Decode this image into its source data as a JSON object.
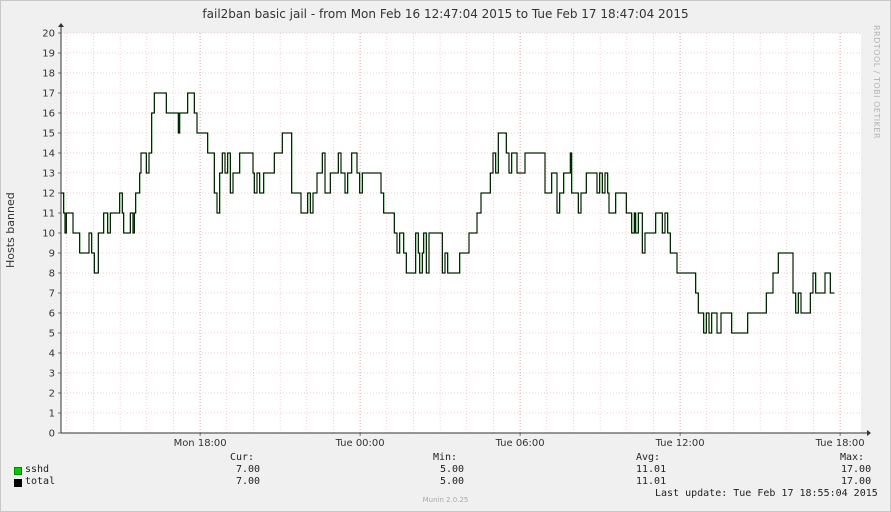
{
  "chart_data": {
    "type": "line",
    "title": "fail2ban basic jail - from Mon Feb 16 12:47:04 2015 to Tue Feb 17 18:47:04 2015",
    "ylabel": "Hosts banned",
    "xlabel": "",
    "ylim": [
      0,
      20
    ],
    "yticks": [
      "0",
      "1",
      "2",
      "3",
      "4",
      "5",
      "6",
      "7",
      "8",
      "9",
      "10",
      "11",
      "12",
      "13",
      "14",
      "15",
      "16",
      "17",
      "18",
      "19",
      "20"
    ],
    "xticks": [
      {
        "label": "Mon 18:00",
        "hour": 5.2167
      },
      {
        "label": "Tue 00:00",
        "hour": 11.2167
      },
      {
        "label": "Tue 06:00",
        "hour": 17.2167
      },
      {
        "label": "Tue 12:00",
        "hour": 23.2167
      },
      {
        "label": "Tue 18:00",
        "hour": 29.2167
      }
    ],
    "x_range_hours": [
      0,
      30
    ],
    "grid": true,
    "series": [
      {
        "name": "sshd",
        "color": "#00cc00",
        "points": [
          [
            0,
            12
          ],
          [
            0.1,
            11
          ],
          [
            0.15,
            10
          ],
          [
            0.2,
            11
          ],
          [
            0.35,
            11
          ],
          [
            0.45,
            10
          ],
          [
            0.6,
            10
          ],
          [
            0.7,
            9
          ],
          [
            1.0,
            9
          ],
          [
            1.05,
            10
          ],
          [
            1.15,
            9
          ],
          [
            1.25,
            8
          ],
          [
            1.3,
            8
          ],
          [
            1.4,
            10
          ],
          [
            1.5,
            10
          ],
          [
            1.6,
            11
          ],
          [
            1.75,
            10
          ],
          [
            1.85,
            11
          ],
          [
            2.1,
            11
          ],
          [
            2.2,
            12
          ],
          [
            2.3,
            11
          ],
          [
            2.35,
            10
          ],
          [
            2.55,
            10
          ],
          [
            2.6,
            11
          ],
          [
            2.7,
            10
          ],
          [
            2.75,
            11
          ],
          [
            2.8,
            12
          ],
          [
            2.95,
            13
          ],
          [
            3.0,
            14
          ],
          [
            3.15,
            14
          ],
          [
            3.2,
            13
          ],
          [
            3.3,
            14
          ],
          [
            3.4,
            16
          ],
          [
            3.5,
            17
          ],
          [
            3.9,
            17
          ],
          [
            3.95,
            16
          ],
          [
            4.3,
            16
          ],
          [
            4.4,
            15
          ],
          [
            4.45,
            16
          ],
          [
            4.7,
            16
          ],
          [
            4.75,
            17
          ],
          [
            4.95,
            17
          ],
          [
            5.0,
            16
          ],
          [
            5.1,
            15
          ],
          [
            5.4,
            15
          ],
          [
            5.5,
            14
          ],
          [
            5.7,
            14
          ],
          [
            5.75,
            12
          ],
          [
            5.85,
            11
          ],
          [
            5.95,
            13
          ],
          [
            6.05,
            14
          ],
          [
            6.15,
            13
          ],
          [
            6.25,
            14
          ],
          [
            6.35,
            12
          ],
          [
            6.45,
            13
          ],
          [
            6.65,
            13
          ],
          [
            6.7,
            14
          ],
          [
            7.15,
            14
          ],
          [
            7.2,
            13
          ],
          [
            7.25,
            12
          ],
          [
            7.35,
            13
          ],
          [
            7.45,
            12
          ],
          [
            7.6,
            13
          ],
          [
            7.95,
            13
          ],
          [
            8.0,
            14
          ],
          [
            8.25,
            14
          ],
          [
            8.3,
            15
          ],
          [
            8.6,
            15
          ],
          [
            8.65,
            12
          ],
          [
            8.9,
            12
          ],
          [
            9.0,
            11
          ],
          [
            9.2,
            11
          ],
          [
            9.25,
            12
          ],
          [
            9.35,
            11
          ],
          [
            9.45,
            12
          ],
          [
            9.6,
            13
          ],
          [
            9.75,
            13
          ],
          [
            9.8,
            14
          ],
          [
            9.9,
            12
          ],
          [
            10.1,
            13
          ],
          [
            10.35,
            13
          ],
          [
            10.4,
            14
          ],
          [
            10.5,
            13
          ],
          [
            10.65,
            12
          ],
          [
            10.75,
            13
          ],
          [
            10.9,
            14
          ],
          [
            11.05,
            14
          ],
          [
            11.1,
            13
          ],
          [
            11.2,
            12
          ],
          [
            11.3,
            13
          ],
          [
            11.95,
            13
          ],
          [
            12.0,
            12
          ],
          [
            12.1,
            11
          ],
          [
            12.4,
            11
          ],
          [
            12.5,
            10
          ],
          [
            12.6,
            9
          ],
          [
            12.7,
            10
          ],
          [
            12.85,
            9
          ],
          [
            12.95,
            8
          ],
          [
            13.2,
            8
          ],
          [
            13.3,
            10
          ],
          [
            13.4,
            9
          ],
          [
            13.45,
            8
          ],
          [
            13.55,
            9
          ],
          [
            13.6,
            10
          ],
          [
            13.7,
            8
          ],
          [
            13.8,
            10
          ],
          [
            14.2,
            10
          ],
          [
            14.3,
            8
          ],
          [
            14.4,
            9
          ],
          [
            14.5,
            8
          ],
          [
            14.9,
            8
          ],
          [
            14.95,
            9
          ],
          [
            15.2,
            9
          ],
          [
            15.3,
            10
          ],
          [
            15.5,
            10
          ],
          [
            15.6,
            11
          ],
          [
            15.75,
            12
          ],
          [
            16.05,
            12
          ],
          [
            16.1,
            13
          ],
          [
            16.2,
            14
          ],
          [
            16.3,
            13
          ],
          [
            16.4,
            15
          ],
          [
            16.65,
            15
          ],
          [
            16.7,
            14
          ],
          [
            16.8,
            13
          ],
          [
            16.9,
            14
          ],
          [
            17.05,
            14
          ],
          [
            17.1,
            13
          ],
          [
            17.3,
            13
          ],
          [
            17.4,
            14
          ],
          [
            18.1,
            14
          ],
          [
            18.15,
            12
          ],
          [
            18.35,
            12
          ],
          [
            18.4,
            13
          ],
          [
            18.6,
            11
          ],
          [
            18.7,
            12
          ],
          [
            18.8,
            12
          ],
          [
            18.85,
            13
          ],
          [
            19.05,
            13
          ],
          [
            19.1,
            14
          ],
          [
            19.15,
            12
          ],
          [
            19.3,
            12
          ],
          [
            19.4,
            11
          ],
          [
            19.5,
            12
          ],
          [
            19.65,
            12
          ],
          [
            19.7,
            13
          ],
          [
            20.05,
            13
          ],
          [
            20.1,
            12
          ],
          [
            20.2,
            13
          ],
          [
            20.3,
            12
          ],
          [
            20.4,
            13
          ],
          [
            20.5,
            12
          ],
          [
            20.55,
            11
          ],
          [
            20.7,
            11
          ],
          [
            20.8,
            12
          ],
          [
            21.15,
            12
          ],
          [
            21.2,
            11
          ],
          [
            21.3,
            11
          ],
          [
            21.4,
            10
          ],
          [
            21.5,
            11
          ],
          [
            21.55,
            10
          ],
          [
            21.65,
            11
          ],
          [
            21.8,
            9
          ],
          [
            21.9,
            10
          ],
          [
            22.2,
            10
          ],
          [
            22.3,
            11
          ],
          [
            22.5,
            11
          ],
          [
            22.55,
            10
          ],
          [
            22.65,
            11
          ],
          [
            22.75,
            10
          ],
          [
            22.85,
            9
          ],
          [
            23.0,
            9
          ],
          [
            23.1,
            8
          ],
          [
            23.7,
            8
          ],
          [
            23.8,
            7
          ],
          [
            23.9,
            6
          ],
          [
            24.05,
            6
          ],
          [
            24.1,
            5
          ],
          [
            24.2,
            6
          ],
          [
            24.3,
            5
          ],
          [
            24.4,
            6
          ],
          [
            24.5,
            6
          ],
          [
            24.6,
            5
          ],
          [
            24.75,
            6
          ],
          [
            25.1,
            6
          ],
          [
            25.15,
            5
          ],
          [
            25.7,
            5
          ],
          [
            25.75,
            6
          ],
          [
            26.4,
            6
          ],
          [
            26.45,
            7
          ],
          [
            26.6,
            7
          ],
          [
            26.7,
            8
          ],
          [
            26.9,
            9
          ],
          [
            27.4,
            9
          ],
          [
            27.45,
            7
          ],
          [
            27.55,
            6
          ],
          [
            27.65,
            7
          ],
          [
            27.75,
            6
          ],
          [
            28.0,
            6
          ],
          [
            28.1,
            7
          ],
          [
            28.2,
            8
          ],
          [
            28.3,
            7
          ],
          [
            28.55,
            7
          ],
          [
            28.65,
            8
          ],
          [
            28.8,
            8
          ],
          [
            28.85,
            7
          ],
          [
            29.0,
            7
          ]
        ]
      },
      {
        "name": "total",
        "color": "#000000",
        "points_same_as": "sshd"
      }
    ]
  },
  "legend": {
    "headers": {
      "cur": "Cur:",
      "min": "Min:",
      "avg": "Avg:",
      "max": "Max:"
    },
    "rows": [
      {
        "name": "sshd",
        "color": "#00cc00",
        "cur": "7.00",
        "min": "5.00",
        "avg": "11.01",
        "max": "17.00"
      },
      {
        "name": "total",
        "color": "#000000",
        "cur": "7.00",
        "min": "5.00",
        "avg": "11.01",
        "max": "17.00"
      }
    ],
    "last_update": "Last update: Tue Feb 17 18:55:04 2015"
  },
  "watermark": "RRDTOOL / TOBI OETIKER",
  "munin_version": "Munin 2.0.25"
}
